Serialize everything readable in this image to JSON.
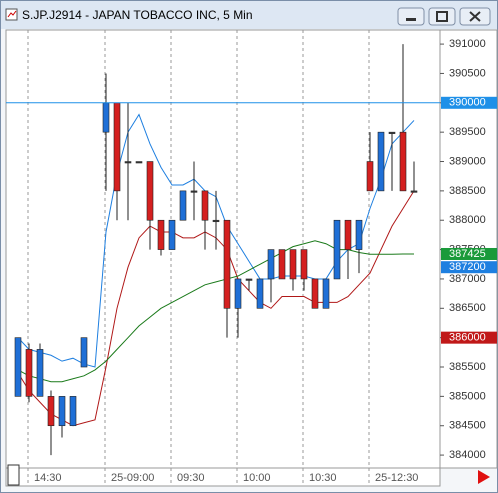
{
  "window_title": "S.JP.J2914 - JAPAN TOBACCO INC, 5 Min",
  "chart_data": {
    "type": "candlestick",
    "categories": [
      null,
      "14:30",
      null,
      null,
      null,
      null,
      null,
      null,
      "25-09:00",
      null,
      null,
      null,
      null,
      null,
      "09:30",
      null,
      null,
      null,
      null,
      null,
      "10:00",
      null,
      null,
      null,
      null,
      null,
      "10:30",
      null,
      null,
      null,
      null,
      null,
      "25-12:30",
      null,
      null,
      null,
      null
    ],
    "open": [
      385000,
      385800,
      385000,
      385000,
      384500,
      384500,
      385500,
      null,
      389500,
      390000,
      389000,
      389000,
      389000,
      388000,
      387500,
      388000,
      388500,
      388500,
      388000,
      388000,
      386500,
      387000,
      386500,
      387000,
      387500,
      387500,
      387500,
      387000,
      386500,
      387000,
      388000,
      387500,
      389000,
      388500,
      389500,
      389500,
      388500
    ],
    "high": [
      386000,
      385900,
      385900,
      385100,
      385000,
      385000,
      386000,
      null,
      390500,
      390000,
      390000,
      389000,
      389000,
      388000,
      388000,
      388500,
      389000,
      388500,
      388500,
      388000,
      387000,
      387000,
      387000,
      387500,
      387500,
      387500,
      387500,
      387000,
      387000,
      388000,
      388000,
      388000,
      389500,
      389500,
      389500,
      391000,
      389000
    ],
    "low": [
      385000,
      384900,
      385000,
      384000,
      384300,
      384500,
      385500,
      null,
      388500,
      388000,
      388000,
      389000,
      387500,
      387400,
      387500,
      388000,
      388000,
      387500,
      387500,
      386000,
      386000,
      386800,
      386500,
      386600,
      387000,
      386800,
      386800,
      386500,
      386500,
      387000,
      387000,
      387100,
      388500,
      388500,
      388500,
      388500,
      388500
    ],
    "close": [
      386000,
      385000,
      385800,
      384500,
      385000,
      385000,
      386000,
      null,
      390000,
      388500,
      389000,
      389000,
      388000,
      387500,
      388000,
      388500,
      388500,
      388000,
      388000,
      386500,
      387000,
      387000,
      387000,
      387500,
      387000,
      387000,
      387000,
      386500,
      387000,
      388000,
      387500,
      388000,
      388500,
      389500,
      389500,
      388500,
      388500
    ],
    "up_color": "#1f6fd6",
    "down_color": "#d42020",
    "flat_color": "#333333",
    "series": [
      {
        "color": "#1e7fe0",
        "values": [
          386000,
          385800,
          385750,
          385700,
          385600,
          385650,
          385550,
          385500,
          387800,
          388800,
          389500,
          389800,
          389300,
          388900,
          388600,
          388600,
          388700,
          388500,
          388400,
          387900,
          387600,
          387300,
          387000,
          387000,
          387050,
          387050,
          387050,
          387000,
          387000,
          387300,
          387500,
          387600,
          388200,
          388700,
          389300,
          389500,
          389700
        ]
      },
      {
        "color": "#b01818",
        "values": [
          385400,
          385100,
          384900,
          384700,
          384600,
          384500,
          384550,
          384600,
          385500,
          386500,
          387200,
          387700,
          387900,
          387800,
          387800,
          387700,
          387700,
          387800,
          387700,
          387500,
          387000,
          386800,
          386600,
          386500,
          386700,
          386700,
          386700,
          386600,
          386600,
          386600,
          386700,
          386900,
          387100,
          387500,
          387900,
          388200,
          388500
        ]
      },
      {
        "color": "#1a7a1a",
        "values": [
          385450,
          385350,
          385300,
          385250,
          385250,
          385300,
          385350,
          385450,
          385600,
          385800,
          386000,
          386200,
          386350,
          386500,
          386600,
          386700,
          386800,
          386900,
          386950,
          387000,
          387050,
          387150,
          387250,
          387350,
          387450,
          387550,
          387600,
          387650,
          387600,
          387500,
          387500,
          387450,
          387420,
          387420,
          387420,
          387425,
          387425
        ]
      }
    ],
    "ylim": [
      383780,
      391240
    ],
    "yticks": [
      384000,
      384500,
      385000,
      385500,
      386000,
      386500,
      387000,
      387500,
      388000,
      388500,
      389000,
      389500,
      390000,
      390500,
      391000
    ],
    "xgrid": true,
    "price_markers": [
      {
        "value": 390000,
        "color": "#1e90e8",
        "line": true
      },
      {
        "value": 387425,
        "color": "#1a9a3a",
        "line": false
      },
      {
        "value": 387200,
        "color": "#1e7fe0",
        "line": false
      },
      {
        "value": 386000,
        "color": "#c01818",
        "line": false
      }
    ]
  }
}
